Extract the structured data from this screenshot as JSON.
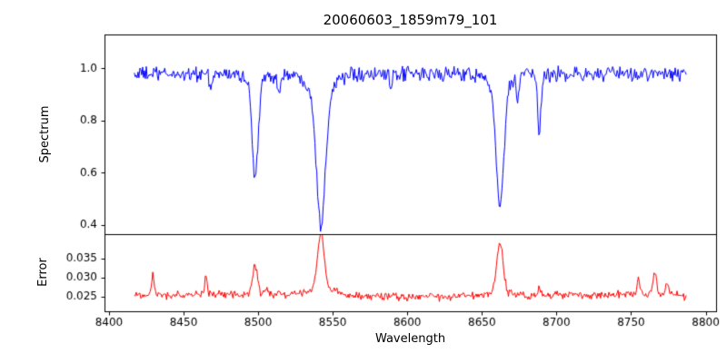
{
  "title": "20060603_1859m79_101",
  "colors": {
    "spectrum_line": "#0000ff",
    "error_line": "#ff0000",
    "axis": "#000000",
    "background": "#ffffff",
    "text": "#000000"
  },
  "chart_data": [
    {
      "panel": "spectrum",
      "type": "line",
      "color_key": "spectrum_line",
      "ylabel": "Spectrum",
      "x_start": 8417,
      "x_end": 8787,
      "n_points": 600,
      "xlim": [
        8397,
        8807
      ],
      "ylim": [
        0.365,
        1.13
      ],
      "yticks": {
        "values": [
          0.4,
          0.6,
          0.8,
          1.0
        ],
        "labels": [
          "0.4",
          "0.6",
          "0.8",
          "1.0"
        ]
      },
      "continuum": 0.978,
      "noise_amp": 0.014,
      "absorption_features": [
        {
          "center": 8498.0,
          "depth": 0.37,
          "width": 2.0
        },
        {
          "center": 8498.0,
          "depth": 0.03,
          "width": 5.0
        },
        {
          "center": 8542.1,
          "depth": 0.52,
          "width": 3.0
        },
        {
          "center": 8542.1,
          "depth": 0.055,
          "width": 9.0
        },
        {
          "center": 8662.1,
          "depth": 0.47,
          "width": 2.6
        },
        {
          "center": 8662.1,
          "depth": 0.04,
          "width": 8.0
        },
        {
          "center": 8688.5,
          "depth": 0.22,
          "width": 1.2
        },
        {
          "center": 8514.0,
          "depth": 0.08,
          "width": 1.0
        },
        {
          "center": 8468.0,
          "depth": 0.06,
          "width": 1.0
        },
        {
          "center": 8674.0,
          "depth": 0.09,
          "width": 0.9
        },
        {
          "center": 8589.0,
          "depth": 0.07,
          "width": 0.9
        },
        {
          "center": 8562.5,
          "depth": -0.05,
          "width": 0.8
        },
        {
          "center": 8641.0,
          "depth": -0.04,
          "width": 0.7
        }
      ]
    },
    {
      "panel": "error",
      "type": "line",
      "color_key": "error_line",
      "ylabel": "Error",
      "xlabel": "Wavelength",
      "x_start": 8417,
      "x_end": 8787,
      "n_points": 600,
      "xlim": [
        8397,
        8807
      ],
      "ylim": [
        0.0212,
        0.0414
      ],
      "yticks": {
        "values": [
          0.025,
          0.03,
          0.035
        ],
        "labels": [
          "0.025",
          "0.030",
          "0.035"
        ]
      },
      "xticks": {
        "values": [
          8400,
          8450,
          8500,
          8550,
          8600,
          8650,
          8700,
          8750,
          8800
        ],
        "labels": [
          "8400",
          "8450",
          "8500",
          "8550",
          "8600",
          "8650",
          "8700",
          "8750",
          "8800"
        ]
      },
      "baseline": 0.0253,
      "noise_amp": 0.0005,
      "peaks": [
        {
          "center": 8429.5,
          "height": 0.005,
          "width": 0.9
        },
        {
          "center": 8465.0,
          "height": 0.0047,
          "width": 0.9
        },
        {
          "center": 8498.0,
          "height": 0.0077,
          "width": 1.6
        },
        {
          "center": 8505.5,
          "height": 0.0018,
          "width": 1.0
        },
        {
          "center": 8514.0,
          "height": 0.0012,
          "width": 1.0
        },
        {
          "center": 8542.1,
          "height": 0.0146,
          "width": 2.2
        },
        {
          "center": 8542.1,
          "height": 0.0018,
          "width": 9.0
        },
        {
          "center": 8662.1,
          "height": 0.0128,
          "width": 2.0
        },
        {
          "center": 8662.1,
          "height": 0.0013,
          "width": 7.0
        },
        {
          "center": 8688.5,
          "height": 0.002,
          "width": 1.0
        },
        {
          "center": 8755.0,
          "height": 0.004,
          "width": 1.0
        },
        {
          "center": 8766.0,
          "height": 0.0055,
          "width": 1.3
        },
        {
          "center": 8774.0,
          "height": 0.0033,
          "width": 0.9
        }
      ]
    }
  ]
}
